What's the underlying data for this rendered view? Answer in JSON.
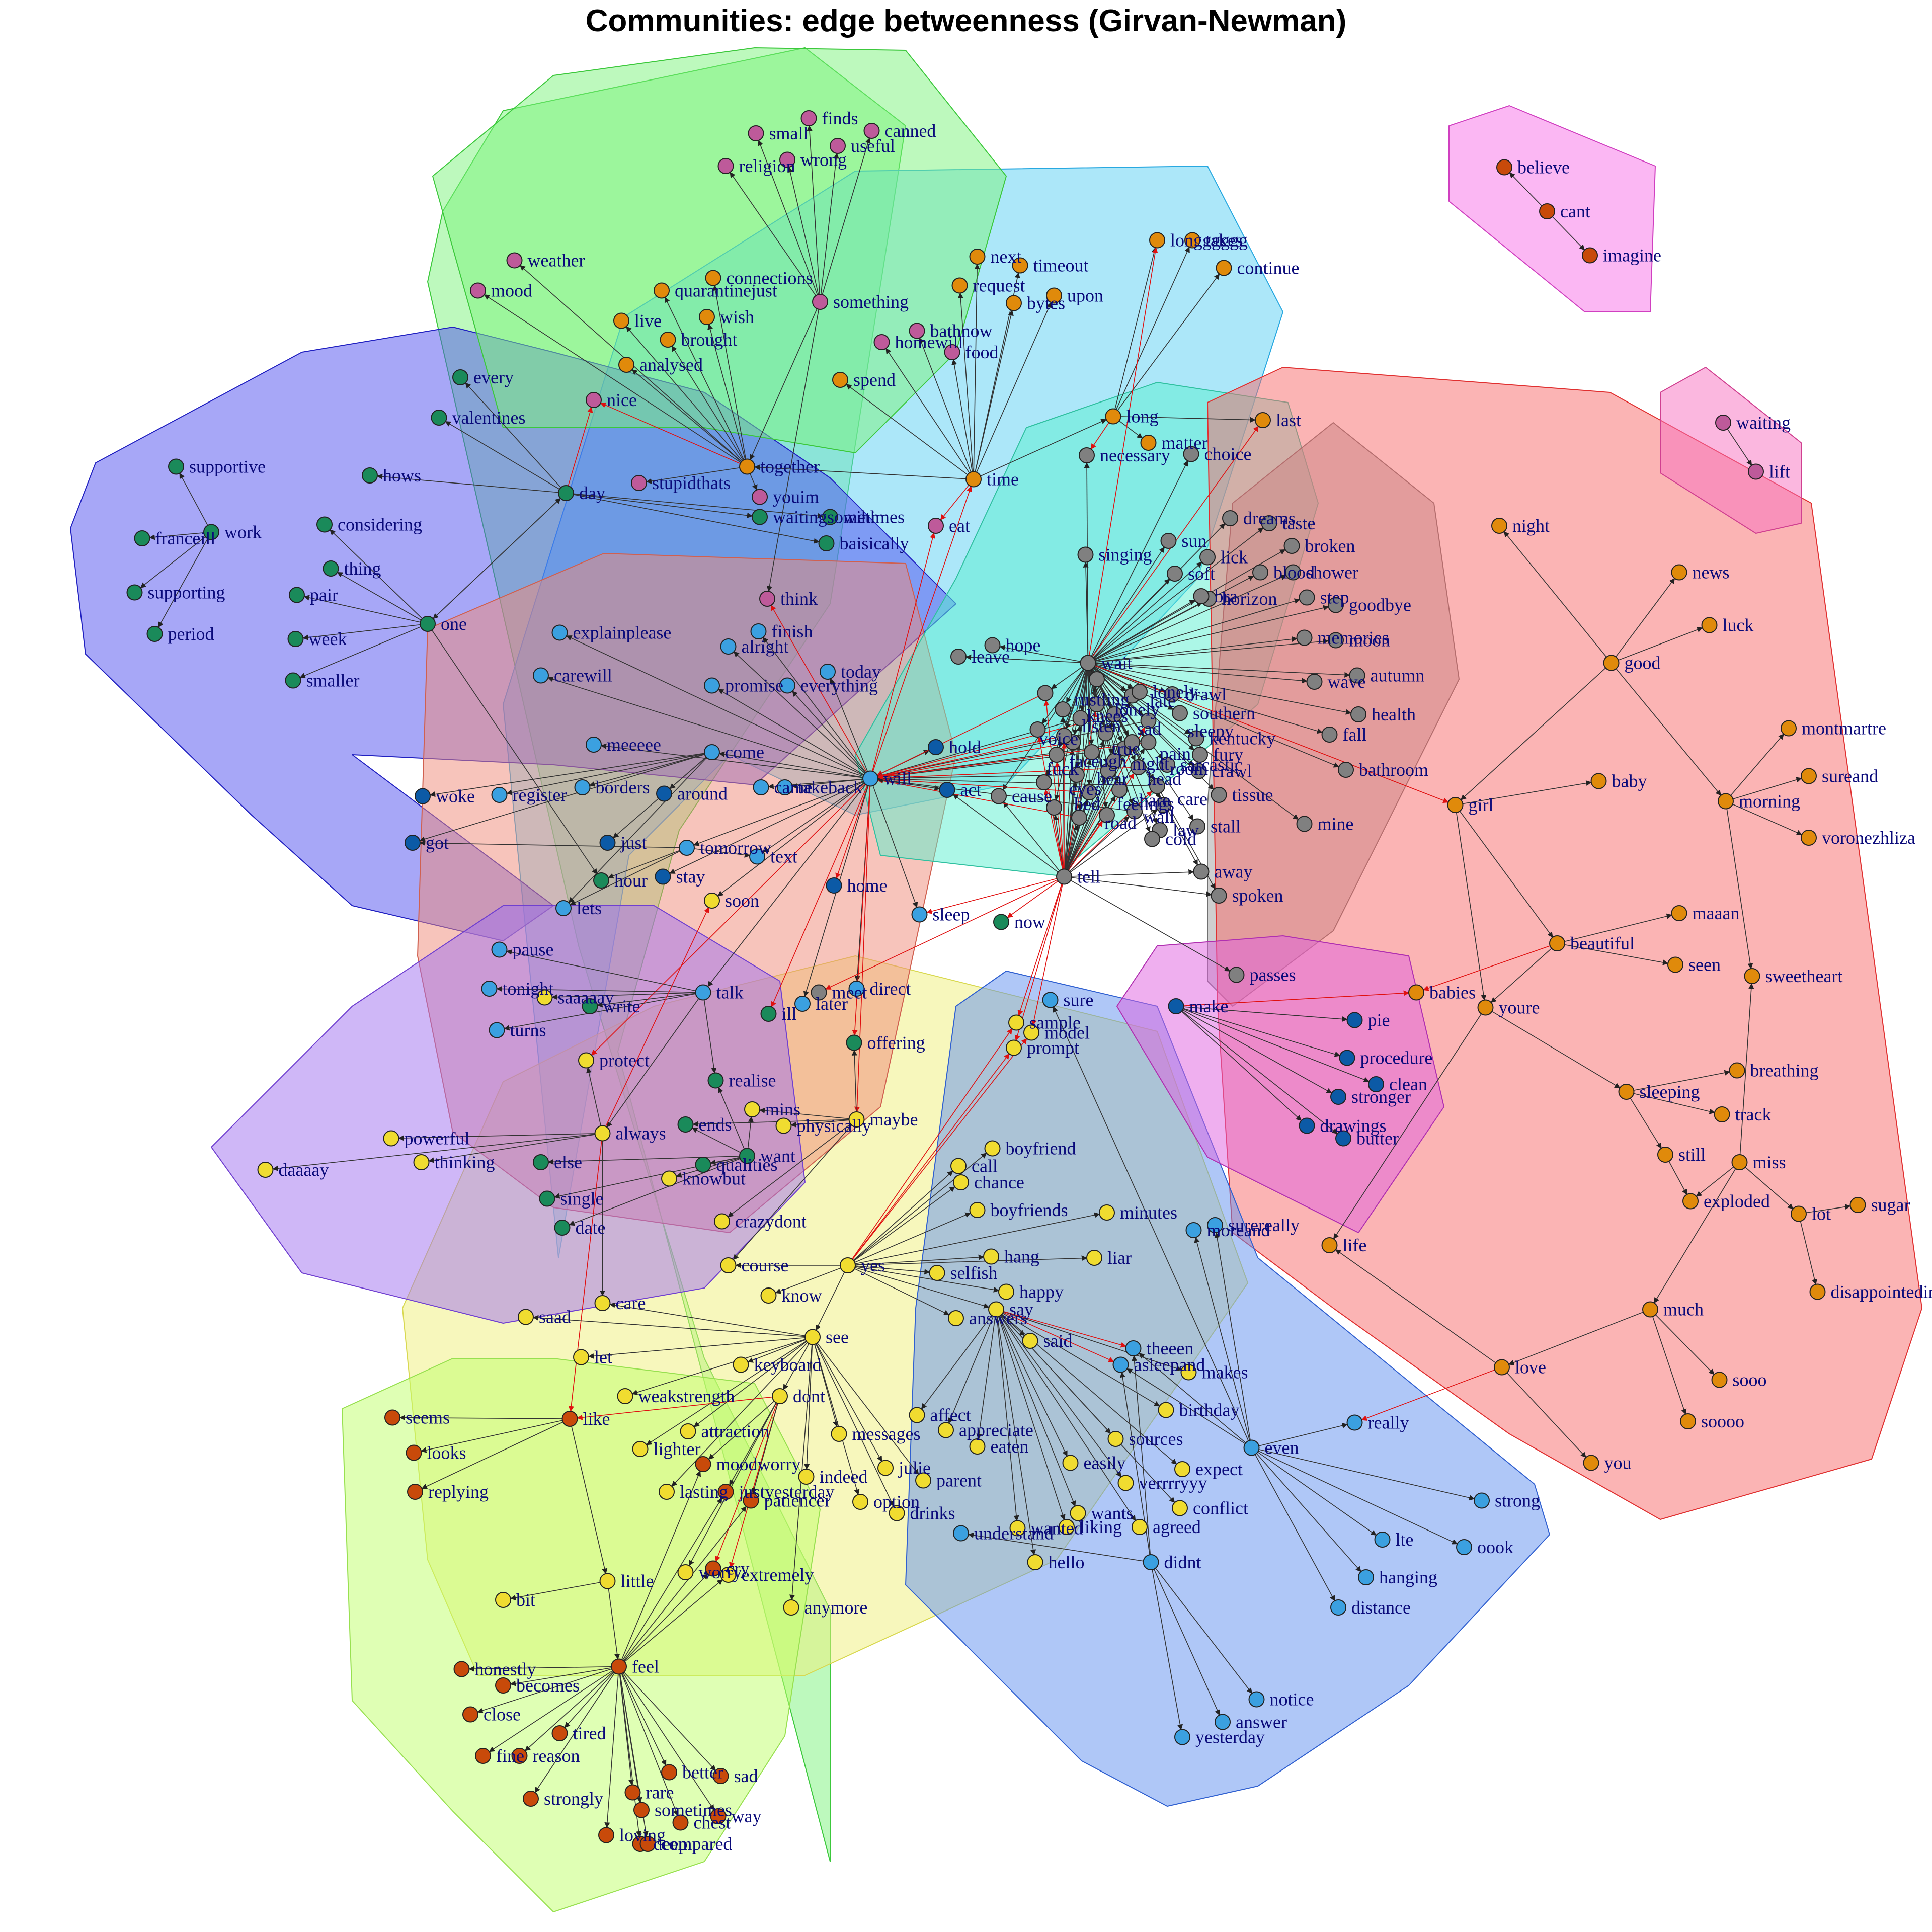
{
  "title": "Communities: edge betweenness (Girvan-Newman)",
  "colors": {
    "orange": "#E08A0B",
    "green": "#1A8A5A",
    "blue": "#3BA0E0",
    "darkblue": "#0C5AA6",
    "yellow": "#F0DC30",
    "magenta": "#BE5A9A",
    "grey": "#808080",
    "red": "#C84A0A"
  },
  "hulls": [
    {
      "fill": "#7CF47C",
      "stroke": "#3CC83C"
    },
    {
      "fill": "#5AD0F4",
      "stroke": "#28A8E0"
    },
    {
      "fill": "#5050F0",
      "stroke": "#2020C0"
    },
    {
      "fill": "#F0F07A",
      "stroke": "#D8D850"
    },
    {
      "fill": "#BFFF6A",
      "stroke": "#98E050"
    },
    {
      "fill": "#F08A78",
      "stroke": "#D06050"
    },
    {
      "fill": "#A070F0",
      "stroke": "#7040D0"
    },
    {
      "fill": "#5AF0D0",
      "stroke": "#30C0A0"
    },
    {
      "fill": "#A0A0A0",
      "stroke": "#707070"
    },
    {
      "fill": "#F86A6A",
      "stroke": "#E03030"
    },
    {
      "fill": "#6090F0",
      "stroke": "#3060D0"
    },
    {
      "fill": "#E060E0",
      "stroke": "#B030B0"
    },
    {
      "fill": "#7CF47C",
      "stroke": "#3CC83C"
    },
    {
      "fill": "#F870E8",
      "stroke": "#D040C0"
    },
    {
      "fill": "#F870C0",
      "stroke": "#D04090"
    }
  ],
  "nodes": [
    {
      "id": "believe",
      "c": "red"
    },
    {
      "id": "cant",
      "c": "red"
    },
    {
      "id": "imagine",
      "c": "red"
    },
    {
      "id": "waiting",
      "c": "magenta"
    },
    {
      "id": "lift",
      "c": "magenta"
    },
    {
      "id": "finds",
      "c": "magenta"
    },
    {
      "id": "canned",
      "c": "magenta"
    },
    {
      "id": "small",
      "c": "magenta"
    },
    {
      "id": "useful",
      "c": "magenta"
    },
    {
      "id": "religion",
      "c": "magenta"
    },
    {
      "id": "wrong",
      "c": "magenta"
    },
    {
      "id": "weather",
      "c": "magenta"
    },
    {
      "id": "mood",
      "c": "magenta"
    },
    {
      "id": "something",
      "c": "magenta"
    },
    {
      "id": "bathnow",
      "c": "magenta"
    },
    {
      "id": "homewill",
      "c": "magenta"
    },
    {
      "id": "food",
      "c": "magenta"
    },
    {
      "id": "nice",
      "c": "magenta"
    },
    {
      "id": "stupidthats",
      "c": "magenta"
    },
    {
      "id": "youim",
      "c": "magenta"
    },
    {
      "id": "think",
      "c": "magenta"
    },
    {
      "id": "eat",
      "c": "magenta"
    },
    {
      "id": "longggggg",
      "c": "orange"
    },
    {
      "id": "takes",
      "c": "orange"
    },
    {
      "id": "continue",
      "c": "orange"
    },
    {
      "id": "next",
      "c": "orange"
    },
    {
      "id": "timeout",
      "c": "orange"
    },
    {
      "id": "request",
      "c": "orange"
    },
    {
      "id": "upon",
      "c": "orange"
    },
    {
      "id": "bytes",
      "c": "orange"
    },
    {
      "id": "connections",
      "c": "orange"
    },
    {
      "id": "quarantinejust",
      "c": "orange"
    },
    {
      "id": "wish",
      "c": "orange"
    },
    {
      "id": "live",
      "c": "orange"
    },
    {
      "id": "brought",
      "c": "orange"
    },
    {
      "id": "analysed",
      "c": "orange"
    },
    {
      "id": "spend",
      "c": "orange"
    },
    {
      "id": "together",
      "c": "orange"
    },
    {
      "id": "time",
      "c": "orange"
    },
    {
      "id": "long",
      "c": "orange"
    },
    {
      "id": "matter",
      "c": "orange"
    },
    {
      "id": "last",
      "c": "orange"
    },
    {
      "id": "night",
      "c": "orange"
    },
    {
      "id": "news",
      "c": "orange"
    },
    {
      "id": "luck",
      "c": "orange"
    },
    {
      "id": "good",
      "c": "orange"
    },
    {
      "id": "montmartre",
      "c": "orange"
    },
    {
      "id": "sureand",
      "c": "orange"
    },
    {
      "id": "morning",
      "c": "orange"
    },
    {
      "id": "voronezhliza",
      "c": "orange"
    },
    {
      "id": "girl",
      "c": "orange"
    },
    {
      "id": "baby",
      "c": "orange"
    },
    {
      "id": "maaan",
      "c": "orange"
    },
    {
      "id": "beautiful",
      "c": "orange"
    },
    {
      "id": "seen",
      "c": "orange"
    },
    {
      "id": "babies",
      "c": "orange"
    },
    {
      "id": "youre",
      "c": "orange"
    },
    {
      "id": "sweetheart",
      "c": "orange"
    },
    {
      "id": "breathing",
      "c": "orange"
    },
    {
      "id": "sleeping",
      "c": "orange"
    },
    {
      "id": "track",
      "c": "orange"
    },
    {
      "id": "still",
      "c": "orange"
    },
    {
      "id": "miss",
      "c": "orange"
    },
    {
      "id": "exploded",
      "c": "orange"
    },
    {
      "id": "lot",
      "c": "orange"
    },
    {
      "id": "sugar",
      "c": "orange"
    },
    {
      "id": "disappointedim",
      "c": "orange"
    },
    {
      "id": "life",
      "c": "orange"
    },
    {
      "id": "much",
      "c": "orange"
    },
    {
      "id": "love",
      "c": "orange"
    },
    {
      "id": "sooo",
      "c": "orange"
    },
    {
      "id": "soooo",
      "c": "orange"
    },
    {
      "id": "you",
      "c": "orange"
    },
    {
      "id": "every",
      "c": "green"
    },
    {
      "id": "valentines",
      "c": "green"
    },
    {
      "id": "supportive",
      "c": "green"
    },
    {
      "id": "hows",
      "c": "green"
    },
    {
      "id": "day",
      "c": "green"
    },
    {
      "id": "franceill",
      "c": "green"
    },
    {
      "id": "work",
      "c": "green"
    },
    {
      "id": "considering",
      "c": "green"
    },
    {
      "id": "thing",
      "c": "green"
    },
    {
      "id": "supporting",
      "c": "green"
    },
    {
      "id": "pair",
      "c": "green"
    },
    {
      "id": "period",
      "c": "green"
    },
    {
      "id": "one",
      "c": "green"
    },
    {
      "id": "week",
      "c": "green"
    },
    {
      "id": "smaller",
      "c": "green"
    },
    {
      "id": "waitingsometimes",
      "c": "green"
    },
    {
      "id": "wihh",
      "c": "green"
    },
    {
      "id": "baisically",
      "c": "green"
    },
    {
      "id": "hour",
      "c": "green"
    },
    {
      "id": "now",
      "c": "green"
    },
    {
      "id": "write",
      "c": "green"
    },
    {
      "id": "ill",
      "c": "green"
    },
    {
      "id": "offering",
      "c": "green"
    },
    {
      "id": "realise",
      "c": "green"
    },
    {
      "id": "ends",
      "c": "green"
    },
    {
      "id": "want",
      "c": "green"
    },
    {
      "id": "qualities",
      "c": "green"
    },
    {
      "id": "else",
      "c": "green"
    },
    {
      "id": "single",
      "c": "green"
    },
    {
      "id": "date",
      "c": "green"
    },
    {
      "id": "explainplease",
      "c": "blue"
    },
    {
      "id": "finish",
      "c": "blue"
    },
    {
      "id": "alright",
      "c": "blue"
    },
    {
      "id": "carewill",
      "c": "blue"
    },
    {
      "id": "today",
      "c": "blue"
    },
    {
      "id": "promise",
      "c": "blue"
    },
    {
      "id": "everything",
      "c": "blue"
    },
    {
      "id": "meeeee",
      "c": "blue"
    },
    {
      "id": "come",
      "c": "blue"
    },
    {
      "id": "will",
      "c": "blue"
    },
    {
      "id": "register",
      "c": "blue"
    },
    {
      "id": "borders",
      "c": "blue"
    },
    {
      "id": "came",
      "c": "blue"
    },
    {
      "id": "takeback",
      "c": "blue"
    },
    {
      "id": "tomorrow",
      "c": "blue"
    },
    {
      "id": "text",
      "c": "blue"
    },
    {
      "id": "lets",
      "c": "blue"
    },
    {
      "id": "sleep",
      "c": "blue"
    },
    {
      "id": "pause",
      "c": "blue"
    },
    {
      "id": "tonight",
      "c": "blue"
    },
    {
      "id": "talk",
      "c": "blue"
    },
    {
      "id": "turns",
      "c": "blue"
    },
    {
      "id": "later",
      "c": "blue"
    },
    {
      "id": "direct",
      "c": "blue"
    },
    {
      "id": "sure",
      "c": "blue"
    },
    {
      "id": "surereally",
      "c": "blue"
    },
    {
      "id": "moreand",
      "c": "blue"
    },
    {
      "id": "theeen",
      "c": "blue"
    },
    {
      "id": "asleepand",
      "c": "blue"
    },
    {
      "id": "even",
      "c": "blue"
    },
    {
      "id": "really",
      "c": "blue"
    },
    {
      "id": "strong",
      "c": "blue"
    },
    {
      "id": "lte",
      "c": "blue"
    },
    {
      "id": "oook",
      "c": "blue"
    },
    {
      "id": "hanging",
      "c": "blue"
    },
    {
      "id": "distance",
      "c": "blue"
    },
    {
      "id": "understand",
      "c": "blue"
    },
    {
      "id": "didnt",
      "c": "blue"
    },
    {
      "id": "notice",
      "c": "blue"
    },
    {
      "id": "answer",
      "c": "blue"
    },
    {
      "id": "yesterday",
      "c": "blue"
    },
    {
      "id": "hold",
      "c": "darkblue"
    },
    {
      "id": "act",
      "c": "darkblue"
    },
    {
      "id": "woke",
      "c": "darkblue"
    },
    {
      "id": "got",
      "c": "darkblue"
    },
    {
      "id": "just",
      "c": "darkblue"
    },
    {
      "id": "around",
      "c": "darkblue"
    },
    {
      "id": "stay",
      "c": "darkblue"
    },
    {
      "id": "home",
      "c": "darkblue"
    },
    {
      "id": "make",
      "c": "darkblue"
    },
    {
      "id": "pie",
      "c": "darkblue"
    },
    {
      "id": "procedure",
      "c": "darkblue"
    },
    {
      "id": "clean",
      "c": "darkblue"
    },
    {
      "id": "stronger",
      "c": "darkblue"
    },
    {
      "id": "drawings",
      "c": "darkblue"
    },
    {
      "id": "butter",
      "c": "darkblue"
    },
    {
      "id": "necessary",
      "c": "grey"
    },
    {
      "id": "choice",
      "c": "grey"
    },
    {
      "id": "dreams",
      "c": "grey"
    },
    {
      "id": "taste",
      "c": "grey"
    },
    {
      "id": "sun",
      "c": "grey"
    },
    {
      "id": "lick",
      "c": "grey"
    },
    {
      "id": "broken",
      "c": "grey"
    },
    {
      "id": "singing",
      "c": "grey"
    },
    {
      "id": "soft",
      "c": "grey"
    },
    {
      "id": "blood",
      "c": "grey"
    },
    {
      "id": "shower",
      "c": "grey"
    },
    {
      "id": "horizon",
      "c": "grey"
    },
    {
      "id": "bra",
      "c": "grey"
    },
    {
      "id": "step",
      "c": "grey"
    },
    {
      "id": "goodbye",
      "c": "grey"
    },
    {
      "id": "memories",
      "c": "grey"
    },
    {
      "id": "moon",
      "c": "grey"
    },
    {
      "id": "hope",
      "c": "grey"
    },
    {
      "id": "leave",
      "c": "grey"
    },
    {
      "id": "wait",
      "c": "grey"
    },
    {
      "id": "drawl",
      "c": "grey"
    },
    {
      "id": "wave",
      "c": "grey"
    },
    {
      "id": "autumn",
      "c": "grey"
    },
    {
      "id": "lonely",
      "c": "grey"
    },
    {
      "id": "southern",
      "c": "grey"
    },
    {
      "id": "health",
      "c": "grey"
    },
    {
      "id": "kentucky",
      "c": "grey"
    },
    {
      "id": "fall",
      "c": "grey"
    },
    {
      "id": "fury",
      "c": "grey"
    },
    {
      "id": "crawl",
      "c": "grey"
    },
    {
      "id": "bathroom",
      "c": "grey"
    },
    {
      "id": "sarcastic",
      "c": "grey"
    },
    {
      "id": "cause",
      "c": "grey"
    },
    {
      "id": "tissue",
      "c": "grey"
    },
    {
      "id": "mine",
      "c": "grey"
    },
    {
      "id": "stall",
      "c": "grey"
    },
    {
      "id": "law",
      "c": "grey"
    },
    {
      "id": "cold",
      "c": "grey"
    },
    {
      "id": "tell",
      "c": "grey"
    },
    {
      "id": "away",
      "c": "grey"
    },
    {
      "id": "spoken",
      "c": "grey"
    },
    {
      "id": "passes",
      "c": "grey"
    },
    {
      "id": "meet",
      "c": "grey"
    },
    {
      "id": "soon",
      "c": "yellow"
    },
    {
      "id": "saaaaay",
      "c": "yellow"
    },
    {
      "id": "protect",
      "c": "yellow"
    },
    {
      "id": "sample",
      "c": "yellow"
    },
    {
      "id": "model",
      "c": "yellow"
    },
    {
      "id": "prompt",
      "c": "yellow"
    },
    {
      "id": "mins",
      "c": "yellow"
    },
    {
      "id": "maybe",
      "c": "yellow"
    },
    {
      "id": "physically",
      "c": "yellow"
    },
    {
      "id": "powerful",
      "c": "yellow"
    },
    {
      "id": "always",
      "c": "yellow"
    },
    {
      "id": "thinking",
      "c": "yellow"
    },
    {
      "id": "daaaay",
      "c": "yellow"
    },
    {
      "id": "knowbut",
      "c": "yellow"
    },
    {
      "id": "boyfriend",
      "c": "yellow"
    },
    {
      "id": "call",
      "c": "yellow"
    },
    {
      "id": "chance",
      "c": "yellow"
    },
    {
      "id": "boyfriends",
      "c": "yellow"
    },
    {
      "id": "minutes",
      "c": "yellow"
    },
    {
      "id": "crazydont",
      "c": "yellow"
    },
    {
      "id": "liar",
      "c": "yellow"
    },
    {
      "id": "hang",
      "c": "yellow"
    },
    {
      "id": "course",
      "c": "yellow"
    },
    {
      "id": "selfish",
      "c": "yellow"
    },
    {
      "id": "happy",
      "c": "yellow"
    },
    {
      "id": "yes",
      "c": "yellow"
    },
    {
      "id": "know",
      "c": "yellow"
    },
    {
      "id": "care",
      "c": "yellow"
    },
    {
      "id": "saad",
      "c": "yellow"
    },
    {
      "id": "answers",
      "c": "yellow"
    },
    {
      "id": "say",
      "c": "yellow"
    },
    {
      "id": "see",
      "c": "yellow"
    },
    {
      "id": "said",
      "c": "yellow"
    },
    {
      "id": "let",
      "c": "yellow"
    },
    {
      "id": "keyboard",
      "c": "yellow"
    },
    {
      "id": "makes",
      "c": "yellow"
    },
    {
      "id": "weakstrength",
      "c": "yellow"
    },
    {
      "id": "dont",
      "c": "yellow"
    },
    {
      "id": "birthday",
      "c": "yellow"
    },
    {
      "id": "affect",
      "c": "yellow"
    },
    {
      "id": "appreciate",
      "c": "yellow"
    },
    {
      "id": "attraction",
      "c": "yellow"
    },
    {
      "id": "messages",
      "c": "yellow"
    },
    {
      "id": "sources",
      "c": "yellow"
    },
    {
      "id": "lighter",
      "c": "yellow"
    },
    {
      "id": "eaten",
      "c": "yellow"
    },
    {
      "id": "easily",
      "c": "yellow"
    },
    {
      "id": "expect",
      "c": "yellow"
    },
    {
      "id": "indeed",
      "c": "yellow"
    },
    {
      "id": "julie",
      "c": "yellow"
    },
    {
      "id": "parent",
      "c": "yellow"
    },
    {
      "id": "verrrryyy",
      "c": "yellow"
    },
    {
      "id": "lasting",
      "c": "yellow"
    },
    {
      "id": "option",
      "c": "yellow"
    },
    {
      "id": "drinks",
      "c": "yellow"
    },
    {
      "id": "wants",
      "c": "yellow"
    },
    {
      "id": "conflict",
      "c": "yellow"
    },
    {
      "id": "liking",
      "c": "yellow"
    },
    {
      "id": "wanted",
      "c": "yellow"
    },
    {
      "id": "agreed",
      "c": "yellow"
    },
    {
      "id": "hello",
      "c": "yellow"
    },
    {
      "id": "worry",
      "c": "yellow"
    },
    {
      "id": "extremely",
      "c": "yellow"
    },
    {
      "id": "little",
      "c": "yellow"
    },
    {
      "id": "bit",
      "c": "yellow"
    },
    {
      "id": "anymore",
      "c": "yellow"
    },
    {
      "id": "seems",
      "c": "red"
    },
    {
      "id": "like",
      "c": "red"
    },
    {
      "id": "looks",
      "c": "red"
    },
    {
      "id": "replying",
      "c": "red"
    },
    {
      "id": "moodworry",
      "c": "red"
    },
    {
      "id": "justyesterday",
      "c": "red"
    },
    {
      "id": "patiencei",
      "c": "red"
    },
    {
      "id": "cry",
      "c": "red"
    },
    {
      "id": "feel",
      "c": "red"
    },
    {
      "id": "honestly",
      "c": "red"
    },
    {
      "id": "becomes",
      "c": "red"
    },
    {
      "id": "close",
      "c": "red"
    },
    {
      "id": "tired",
      "c": "red"
    },
    {
      "id": "fine",
      "c": "red"
    },
    {
      "id": "reason",
      "c": "red"
    },
    {
      "id": "better",
      "c": "red"
    },
    {
      "id": "sad",
      "c": "red"
    },
    {
      "id": "strongly",
      "c": "red"
    },
    {
      "id": "rare",
      "c": "red"
    },
    {
      "id": "sometimes",
      "c": "red"
    },
    {
      "id": "way",
      "c": "red"
    },
    {
      "id": "loving",
      "c": "red"
    },
    {
      "id": "chest",
      "c": "red"
    },
    {
      "id": "deep",
      "c": "red"
    },
    {
      "id": "compared",
      "c": "red"
    }
  ],
  "core_labels": [
    "rustling",
    "lonely",
    "late",
    "sad",
    "listen",
    "true",
    "head",
    "face",
    "bear",
    "share",
    "fuck",
    "bed",
    "road",
    "wall",
    "care",
    "voice",
    "pain",
    "knees",
    "feelings",
    "sleepy",
    "ugh",
    "night",
    "eyes",
    "room"
  ]
}
